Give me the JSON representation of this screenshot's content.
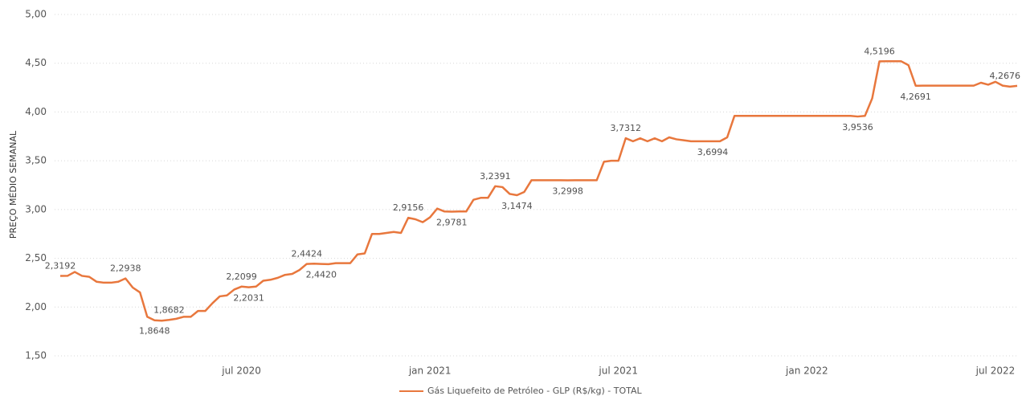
{
  "chart_data": {
    "type": "line",
    "y_label": "PREÇO MÉDIO SEMANAL",
    "ylim": [
      1.5,
      5
    ],
    "yticks": [
      {
        "value": 1.5,
        "label": "1,50"
      },
      {
        "value": 2,
        "label": "2,00"
      },
      {
        "value": 2.5,
        "label": "2,50"
      },
      {
        "value": 3,
        "label": "3,00"
      },
      {
        "value": 3.5,
        "label": "3,50"
      },
      {
        "value": 4,
        "label": "4,00"
      },
      {
        "value": 4.5,
        "label": "4,50"
      },
      {
        "value": 5,
        "label": "5,00"
      }
    ],
    "grid": true,
    "legend": "bottom",
    "categories": [
      null,
      null,
      null,
      null,
      null,
      null,
      null,
      null,
      null,
      null,
      null,
      null,
      null,
      null,
      null,
      null,
      null,
      null,
      null,
      null,
      null,
      null,
      null,
      null,
      null,
      "jul 2020",
      null,
      null,
      null,
      null,
      null,
      null,
      null,
      null,
      null,
      null,
      null,
      null,
      null,
      null,
      null,
      null,
      null,
      null,
      null,
      null,
      null,
      null,
      null,
      null,
      null,
      "jan 2021",
      null,
      null,
      null,
      null,
      null,
      null,
      null,
      null,
      null,
      null,
      null,
      null,
      null,
      null,
      null,
      null,
      null,
      null,
      null,
      null,
      null,
      null,
      null,
      null,
      null,
      "jul 2021",
      null,
      null,
      null,
      null,
      null,
      null,
      null,
      null,
      null,
      null,
      null,
      null,
      null,
      null,
      null,
      null,
      null,
      null,
      null,
      null,
      null,
      null,
      null,
      null,
      null,
      "jan 2022",
      null,
      null,
      null,
      null,
      null,
      null,
      null,
      null,
      null,
      null,
      null,
      null,
      null,
      null,
      null,
      null,
      null,
      null,
      null,
      null,
      null,
      null,
      null,
      null,
      null,
      "jul 2022",
      null,
      null,
      null
    ],
    "series": [
      {
        "name": "Gás Liquefeito de Petróleo - GLP (R$/kg) - TOTAL",
        "color": "#e8773d",
        "values": [
          2.3192,
          2.32,
          2.36,
          2.32,
          2.31,
          2.26,
          2.25,
          2.25,
          2.26,
          2.2938,
          2.2,
          2.15,
          1.9,
          1.8648,
          1.86,
          1.8682,
          1.88,
          1.9,
          1.9,
          1.96,
          1.96,
          2.04,
          2.11,
          2.12,
          2.18,
          2.2099,
          2.2031,
          2.21,
          2.27,
          2.28,
          2.3,
          2.33,
          2.34,
          2.38,
          2.4424,
          2.445,
          2.442,
          2.44,
          2.45,
          2.45,
          2.45,
          2.54,
          2.55,
          2.75,
          2.75,
          2.76,
          2.77,
          2.76,
          2.9156,
          2.9,
          2.87,
          2.92,
          3.01,
          2.98,
          2.9781,
          2.98,
          2.98,
          3.1,
          3.12,
          3.12,
          3.2391,
          3.23,
          3.16,
          3.1474,
          3.18,
          3.3,
          3.3,
          3.3,
          3.3,
          3.3,
          3.2998,
          3.3,
          3.3,
          3.3,
          3.3,
          3.49,
          3.5,
          3.5,
          3.7312,
          3.7,
          3.73,
          3.7,
          3.73,
          3.7,
          3.74,
          3.72,
          3.71,
          3.7,
          3.7,
          3.7,
          3.6994,
          3.7,
          3.74,
          3.96,
          3.96,
          3.96,
          3.96,
          3.96,
          3.96,
          3.96,
          3.96,
          3.96,
          3.96,
          3.96,
          3.96,
          3.96,
          3.96,
          3.96,
          3.96,
          3.96,
          3.9536,
          3.96,
          4.14,
          4.5196,
          4.52,
          4.52,
          4.52,
          4.48,
          4.2691,
          4.27,
          4.27,
          4.27,
          4.27,
          4.27,
          4.27,
          4.27,
          4.27,
          4.3,
          4.28,
          4.31,
          4.27,
          4.26,
          4.2676
        ],
        "value_labels": [
          "2,3192",
          null,
          null,
          null,
          null,
          null,
          null,
          null,
          null,
          "2,2938",
          null,
          null,
          null,
          "1,8648",
          null,
          "1,8682",
          null,
          null,
          null,
          null,
          null,
          null,
          null,
          null,
          null,
          "2,2099",
          "2,2031",
          null,
          null,
          null,
          null,
          null,
          null,
          null,
          "2,4424",
          null,
          "2,4420",
          null,
          null,
          null,
          null,
          null,
          null,
          null,
          null,
          null,
          null,
          null,
          "2,9156",
          null,
          null,
          null,
          null,
          null,
          "2,9781",
          null,
          null,
          null,
          null,
          null,
          "3,2391",
          null,
          null,
          "3,1474",
          null,
          null,
          null,
          null,
          null,
          null,
          "3,2998",
          null,
          null,
          null,
          null,
          null,
          null,
          null,
          "3,7312",
          null,
          null,
          null,
          null,
          null,
          null,
          null,
          null,
          null,
          null,
          null,
          "3,6994",
          null,
          null,
          null,
          null,
          null,
          null,
          null,
          null,
          null,
          null,
          null,
          null,
          null,
          null,
          null,
          null,
          null,
          null,
          null,
          "3,9536",
          null,
          null,
          "4,5196",
          null,
          null,
          null,
          null,
          "4,2691",
          null,
          null,
          null,
          null,
          null,
          null,
          null,
          null,
          null,
          null,
          null,
          null,
          null,
          "4,2676"
        ]
      }
    ]
  }
}
